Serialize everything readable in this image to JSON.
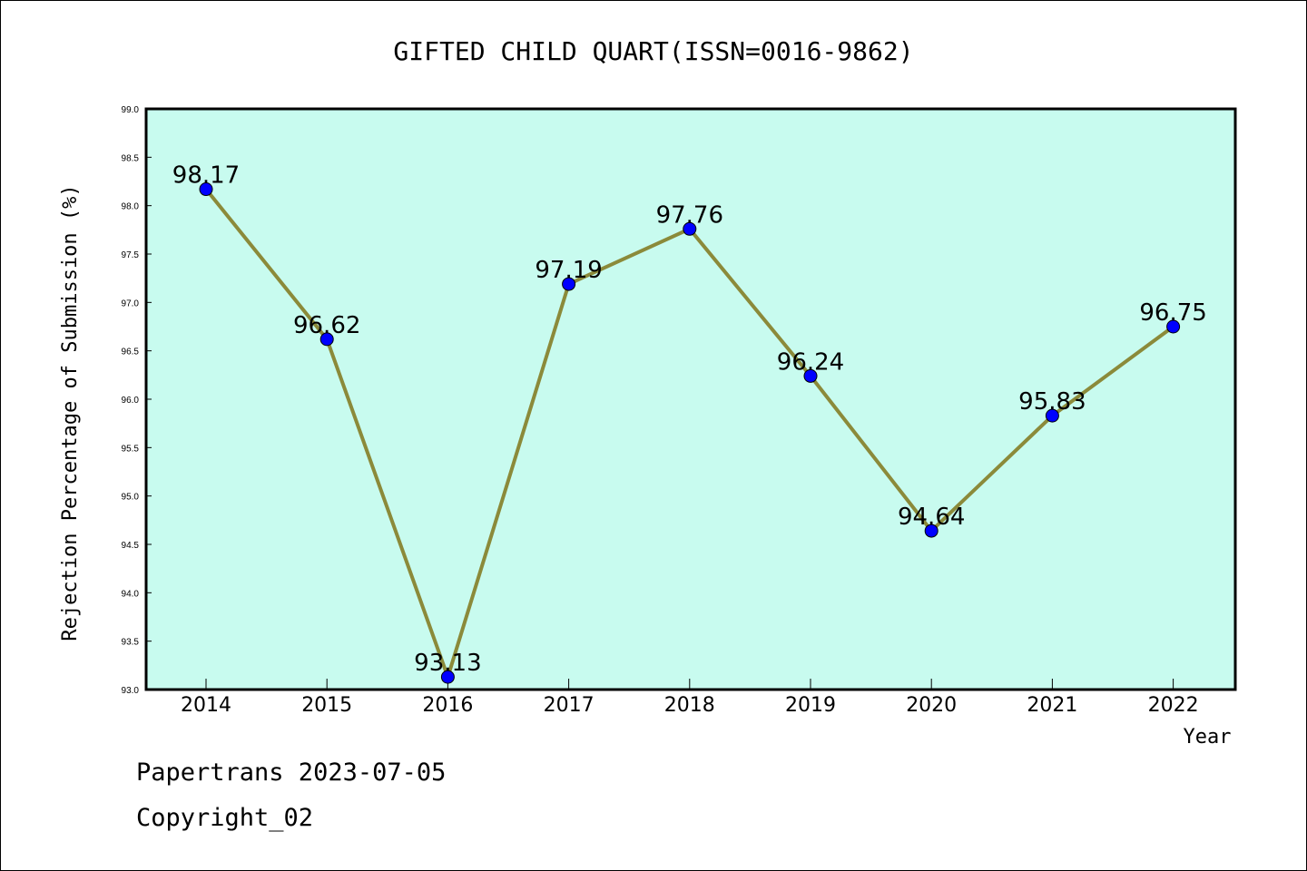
{
  "footer": {
    "line1": "Papertrans 2023-07-05",
    "line2": "Copyright_02"
  },
  "colors": {
    "plot_background": "#c8fbef",
    "line": "#8b8a3a",
    "marker": "#0000ff"
  },
  "chart_data": {
    "type": "line",
    "title": "GIFTED CHILD QUART(ISSN=0016-9862)",
    "xlabel": "Year",
    "ylabel": "Rejection Percentage of Submission (%)",
    "categories": [
      "2014",
      "2015",
      "2016",
      "2017",
      "2018",
      "2019",
      "2020",
      "2021",
      "2022"
    ],
    "values": [
      98.17,
      96.62,
      93.13,
      97.19,
      97.76,
      96.24,
      94.64,
      95.83,
      96.75
    ],
    "data_labels": [
      "98.17",
      "96.62",
      "93.13",
      "97.19",
      "97.76",
      "96.24",
      "94.64",
      "95.83",
      "96.75"
    ],
    "ylim": [
      93.0,
      99.0
    ],
    "yticks": [
      "93.0",
      "93.5",
      "94.0",
      "94.5",
      "95.0",
      "95.5",
      "96.0",
      "96.5",
      "97.0",
      "97.5",
      "98.0",
      "98.5",
      "99.0"
    ],
    "grid": false,
    "legend": "none"
  }
}
